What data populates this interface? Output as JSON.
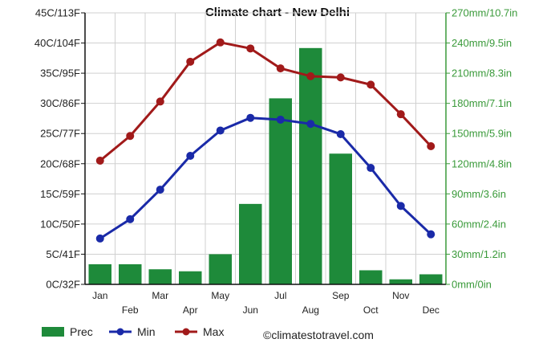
{
  "chart_data": {
    "type": "bar",
    "title": "Climate chart - New Delhi",
    "categories": [
      "Jan",
      "Feb",
      "Mar",
      "Apr",
      "May",
      "Jun",
      "Jul",
      "Aug",
      "Sep",
      "Oct",
      "Nov",
      "Dec"
    ],
    "left_axis": {
      "ylim": [
        0,
        45
      ],
      "ticks": [
        0,
        5,
        10,
        15,
        20,
        25,
        30,
        35,
        40,
        45
      ],
      "tick_labels": [
        "0C/32F",
        "5C/41F",
        "10C/50F",
        "15C/59F",
        "20C/68F",
        "25C/77F",
        "30C/86F",
        "35C/95F",
        "40C/104F",
        "45C/113F"
      ]
    },
    "right_axis": {
      "ylim": [
        0,
        270
      ],
      "ticks": [
        0,
        30,
        60,
        90,
        120,
        150,
        180,
        210,
        240,
        270
      ],
      "tick_labels": [
        "0mm/0in",
        "30mm/1.2in",
        "60mm/2.4in",
        "90mm/3.6in",
        "120mm/4.8in",
        "150mm/5.9in",
        "180mm/7.1in",
        "210mm/8.3in",
        "240mm/9.5in",
        "270mm/10.7in"
      ]
    },
    "series": [
      {
        "name": "Prec",
        "kind": "bar",
        "axis": "right",
        "color": "#1e8a3a",
        "values": [
          20,
          20,
          15,
          13,
          30,
          80,
          185,
          235,
          130,
          14,
          5,
          10
        ]
      },
      {
        "name": "Min",
        "kind": "line",
        "axis": "left",
        "color": "#1a2aa8",
        "values": [
          7.6,
          10.8,
          15.7,
          21.3,
          25.5,
          27.6,
          27.3,
          26.6,
          24.9,
          19.3,
          13.0,
          8.3
        ]
      },
      {
        "name": "Max",
        "kind": "line",
        "axis": "left",
        "color": "#a11a1a",
        "values": [
          20.5,
          24.6,
          30.3,
          36.9,
          40.1,
          39.1,
          35.8,
          34.5,
          34.3,
          33.1,
          28.2,
          22.9
        ]
      }
    ],
    "grid": true,
    "legend": "bottom-left"
  },
  "credit": "©climatestotravel.com"
}
